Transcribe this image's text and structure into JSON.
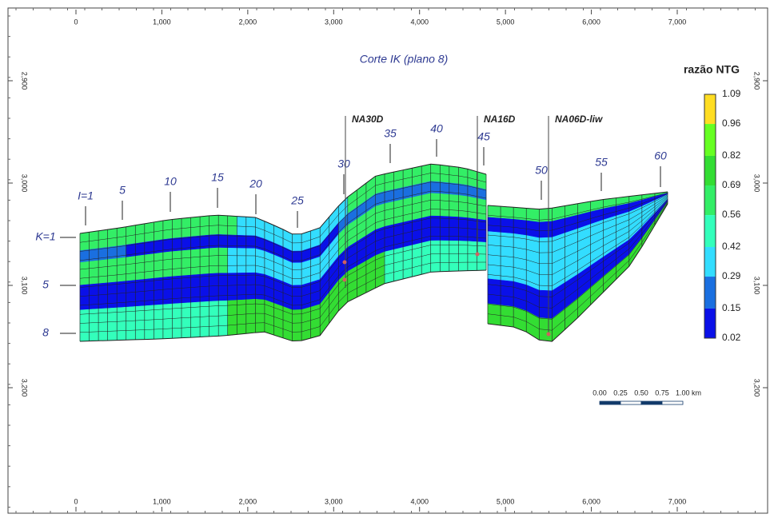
{
  "title": "Corte IK (plano 8)",
  "x_ticks": [
    0,
    {
      "value": 1000,
      "label": "1,000"
    },
    {
      "value": 2000,
      "label": "2,000"
    },
    {
      "value": 3000,
      "label": "3,000"
    },
    {
      "value": 4000,
      "label": "4,000"
    },
    {
      "value": 5000,
      "label": "5,000"
    },
    {
      "value": 6000,
      "label": "6,000"
    },
    {
      "value": 7000,
      "label": "7,000"
    }
  ],
  "depth_ticks": [
    {
      "value": 2900,
      "label": "2,900"
    },
    {
      "value": 3000,
      "label": "3,000"
    },
    {
      "value": 3100,
      "label": "3,100"
    },
    {
      "value": 3200,
      "label": "3,200"
    }
  ],
  "colorbar": {
    "title": "razão NTG",
    "ticks": [
      1.09,
      0.96,
      0.82,
      0.69,
      0.56,
      0.42,
      0.29,
      0.15,
      0.02
    ],
    "colors": [
      "#ffdd22",
      "#66ff22",
      "#33dd33",
      "#33ee66",
      "#33ffbb",
      "#33ddff",
      "#1a6fe0",
      "#0a10e8"
    ]
  },
  "i_labels": [
    "I=1",
    "5",
    "10",
    "15",
    "20",
    "25",
    "30",
    "35",
    "40",
    "45",
    "50",
    "55",
    "60"
  ],
  "k_labels": [
    "K=1",
    "5",
    "8"
  ],
  "wells": [
    "NA30D",
    "NA16D",
    "NA06D-liw"
  ],
  "scale_bar": [
    "0.00",
    "0.25",
    "0.50",
    "0.75",
    "1.00 km"
  ]
}
